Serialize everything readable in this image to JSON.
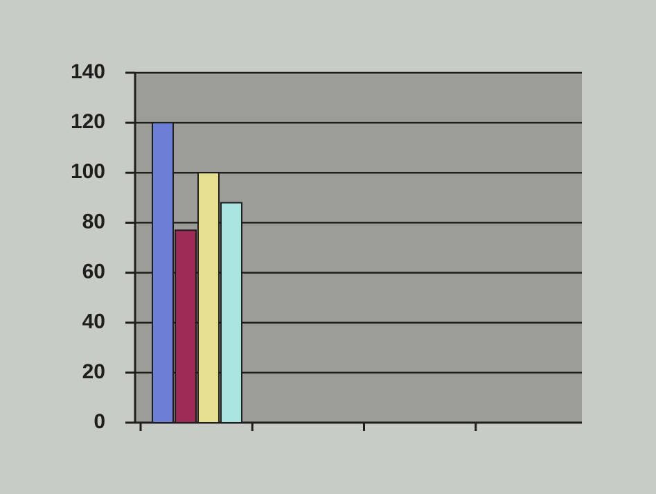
{
  "chart_data": {
    "type": "bar",
    "categories": [
      null,
      null,
      null,
      null
    ],
    "series": [
      {
        "color": "#6b7fd6",
        "values": [
          120,
          null,
          null,
          null
        ]
      },
      {
        "color": "#9b2a55",
        "values": [
          77,
          null,
          null,
          null
        ]
      },
      {
        "color": "#e6df90",
        "values": [
          100,
          null,
          null,
          null
        ]
      },
      {
        "color": "#a8e4e0",
        "values": [
          88,
          null,
          null,
          null
        ]
      }
    ],
    "ylim": [
      0,
      140
    ],
    "yticks": [
      0,
      20,
      40,
      60,
      80,
      100,
      120,
      140
    ],
    "grid": true
  }
}
